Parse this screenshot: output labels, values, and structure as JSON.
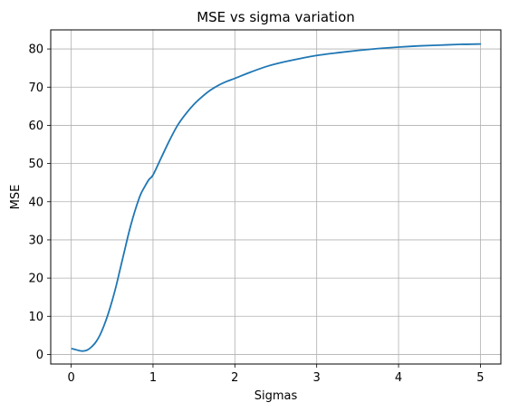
{
  "chart_data": {
    "type": "line",
    "title": "MSE vs sigma variation",
    "xlabel": "Sigmas",
    "ylabel": "MSE",
    "xlim": [
      -0.25,
      5.25
    ],
    "ylim": [
      -2.5,
      85
    ],
    "xticks": [
      0,
      1,
      2,
      3,
      4,
      5
    ],
    "yticks": [
      0,
      10,
      20,
      30,
      40,
      50,
      60,
      70,
      80
    ],
    "grid": true,
    "series": [
      {
        "color": "#1f77b4",
        "x": [
          0.01,
          0.05,
          0.1,
          0.15,
          0.2,
          0.25,
          0.3,
          0.35,
          0.4,
          0.45,
          0.5,
          0.55,
          0.6,
          0.65,
          0.7,
          0.75,
          0.8,
          0.85,
          0.9,
          0.95,
          1.0,
          1.1,
          1.2,
          1.3,
          1.4,
          1.5,
          1.6,
          1.7,
          1.8,
          1.9,
          2.0,
          2.2,
          2.4,
          2.6,
          2.8,
          3.0,
          3.25,
          3.5,
          3.75,
          4.0,
          4.25,
          4.5,
          4.75,
          5.0
        ],
        "y": [
          1.5,
          1.3,
          1.0,
          0.9,
          1.2,
          2.0,
          3.2,
          5.0,
          7.5,
          10.5,
          14.0,
          18.0,
          22.5,
          27.0,
          31.5,
          35.5,
          39.0,
          42.0,
          44.0,
          45.8,
          47.0,
          51.5,
          56.0,
          60.0,
          63.0,
          65.5,
          67.5,
          69.2,
          70.5,
          71.5,
          72.3,
          74.0,
          75.5,
          76.6,
          77.5,
          78.3,
          79.0,
          79.6,
          80.1,
          80.5,
          80.8,
          81.0,
          81.2,
          81.3
        ]
      }
    ]
  }
}
